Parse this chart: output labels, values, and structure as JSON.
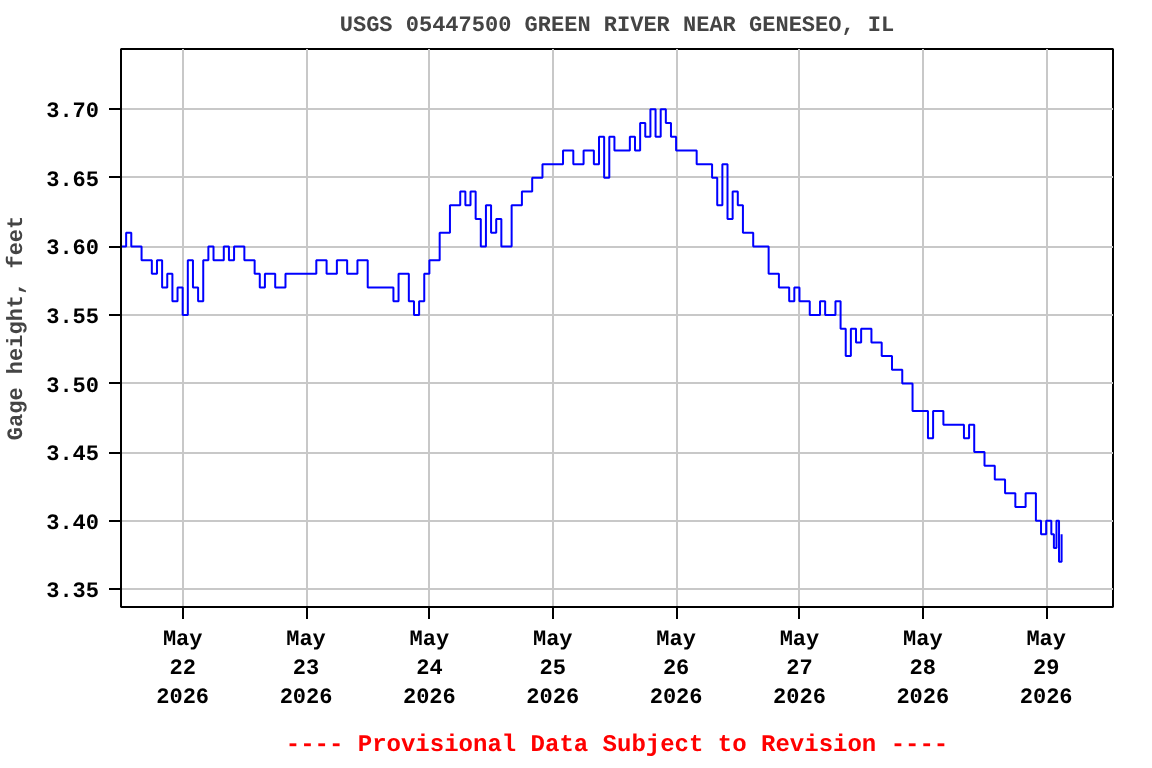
{
  "chart_data": {
    "type": "step",
    "title": "USGS 05447500 GREEN RIVER NEAR GENESEO, IL",
    "ylabel": "Gage height, feet",
    "annotations": [
      "---- Provisional Data Subject to Revision ----"
    ],
    "x": [
      "2026-05-21T12:00",
      "2026-05-21T13:00",
      "2026-05-21T14:00",
      "2026-05-21T16:00",
      "2026-05-21T18:00",
      "2026-05-21T19:00",
      "2026-05-21T20:00",
      "2026-05-21T21:00",
      "2026-05-21T22:00",
      "2026-05-21T23:00",
      "2026-05-22T00:00",
      "2026-05-22T01:00",
      "2026-05-22T02:00",
      "2026-05-22T03:00",
      "2026-05-22T04:00",
      "2026-05-22T05:00",
      "2026-05-22T06:00",
      "2026-05-22T08:00",
      "2026-05-22T09:00",
      "2026-05-22T10:00",
      "2026-05-22T12:00",
      "2026-05-22T14:00",
      "2026-05-22T15:00",
      "2026-05-22T16:00",
      "2026-05-22T18:00",
      "2026-05-22T20:00",
      "2026-05-23T00:00",
      "2026-05-23T02:00",
      "2026-05-23T04:00",
      "2026-05-23T06:00",
      "2026-05-23T08:00",
      "2026-05-23T10:00",
      "2026-05-23T12:00",
      "2026-05-23T14:00",
      "2026-05-23T16:00",
      "2026-05-23T17:00",
      "2026-05-23T18:00",
      "2026-05-23T20:00",
      "2026-05-23T21:00",
      "2026-05-23T22:00",
      "2026-05-23T23:00",
      "2026-05-24T00:00",
      "2026-05-24T02:00",
      "2026-05-24T04:00",
      "2026-05-24T06:00",
      "2026-05-24T07:00",
      "2026-05-24T08:00",
      "2026-05-24T09:00",
      "2026-05-24T10:00",
      "2026-05-24T11:00",
      "2026-05-24T12:00",
      "2026-05-24T13:00",
      "2026-05-24T14:00",
      "2026-05-24T16:00",
      "2026-05-24T18:00",
      "2026-05-24T20:00",
      "2026-05-24T22:00",
      "2026-05-25T00:00",
      "2026-05-25T02:00",
      "2026-05-25T04:00",
      "2026-05-25T06:00",
      "2026-05-25T08:00",
      "2026-05-25T09:00",
      "2026-05-25T10:00",
      "2026-05-25T11:00",
      "2026-05-25T12:00",
      "2026-05-25T14:00",
      "2026-05-25T15:00",
      "2026-05-25T16:00",
      "2026-05-25T17:00",
      "2026-05-25T18:00",
      "2026-05-25T19:00",
      "2026-05-25T20:00",
      "2026-05-25T21:00",
      "2026-05-25T22:00",
      "2026-05-25T23:00",
      "2026-05-26T00:00",
      "2026-05-26T02:00",
      "2026-05-26T04:00",
      "2026-05-26T06:00",
      "2026-05-26T07:00",
      "2026-05-26T08:00",
      "2026-05-26T09:00",
      "2026-05-26T10:00",
      "2026-05-26T11:00",
      "2026-05-26T12:00",
      "2026-05-26T13:00",
      "2026-05-26T15:00",
      "2026-05-26T18:00",
      "2026-05-26T20:00",
      "2026-05-26T22:00",
      "2026-05-26T23:00",
      "2026-05-27T00:00",
      "2026-05-27T02:00",
      "2026-05-27T04:00",
      "2026-05-27T05:00",
      "2026-05-27T07:00",
      "2026-05-27T08:00",
      "2026-05-27T09:00",
      "2026-05-27T10:00",
      "2026-05-27T11:00",
      "2026-05-27T12:00",
      "2026-05-27T14:00",
      "2026-05-27T16:00",
      "2026-05-27T18:00",
      "2026-05-27T20:00",
      "2026-05-27T22:00",
      "2026-05-28T00:00",
      "2026-05-28T01:00",
      "2026-05-28T02:00",
      "2026-05-28T04:00",
      "2026-05-28T06:00",
      "2026-05-28T08:00",
      "2026-05-28T09:00",
      "2026-05-28T10:00",
      "2026-05-28T12:00",
      "2026-05-28T14:00",
      "2026-05-28T16:00",
      "2026-05-28T18:00",
      "2026-05-28T20:00",
      "2026-05-28T22:00",
      "2026-05-28T23:00",
      "2026-05-29T00:00",
      "2026-05-29T01:00",
      "2026-05-29T01:30",
      "2026-05-29T02:00",
      "2026-05-29T02:30",
      "2026-05-29T03:00"
    ],
    "series": [
      {
        "color": "#0000ff",
        "values": [
          3.6,
          3.61,
          3.6,
          3.59,
          3.58,
          3.59,
          3.57,
          3.58,
          3.56,
          3.57,
          3.55,
          3.59,
          3.57,
          3.56,
          3.59,
          3.6,
          3.59,
          3.6,
          3.59,
          3.6,
          3.59,
          3.58,
          3.57,
          3.58,
          3.57,
          3.58,
          3.58,
          3.59,
          3.58,
          3.59,
          3.58,
          3.59,
          3.57,
          3.57,
          3.57,
          3.56,
          3.58,
          3.56,
          3.55,
          3.56,
          3.58,
          3.59,
          3.61,
          3.63,
          3.64,
          3.63,
          3.64,
          3.62,
          3.6,
          3.63,
          3.61,
          3.62,
          3.6,
          3.63,
          3.64,
          3.65,
          3.66,
          3.66,
          3.67,
          3.66,
          3.67,
          3.66,
          3.68,
          3.65,
          3.68,
          3.67,
          3.67,
          3.68,
          3.67,
          3.69,
          3.68,
          3.7,
          3.68,
          3.7,
          3.69,
          3.68,
          3.67,
          3.67,
          3.66,
          3.66,
          3.65,
          3.63,
          3.66,
          3.62,
          3.64,
          3.63,
          3.61,
          3.6,
          3.58,
          3.57,
          3.56,
          3.57,
          3.56,
          3.55,
          3.56,
          3.55,
          3.56,
          3.54,
          3.52,
          3.54,
          3.53,
          3.54,
          3.53,
          3.52,
          3.51,
          3.5,
          3.48,
          3.48,
          3.46,
          3.48,
          3.47,
          3.47,
          3.46,
          3.47,
          3.45,
          3.44,
          3.43,
          3.42,
          3.41,
          3.42,
          3.4,
          3.39,
          3.4,
          3.39,
          3.38,
          3.4,
          3.37,
          3.39
        ]
      }
    ],
    "xlim": [
      "2026-05-21T12:00",
      "2026-05-29T13:00"
    ],
    "xticks": [
      {
        "value": "2026-05-22",
        "label": "May\n22\n2026"
      },
      {
        "value": "2026-05-23",
        "label": "May\n23\n2026"
      },
      {
        "value": "2026-05-24",
        "label": "May\n24\n2026"
      },
      {
        "value": "2026-05-25",
        "label": "May\n25\n2026"
      },
      {
        "value": "2026-05-26",
        "label": "May\n26\n2026"
      },
      {
        "value": "2026-05-27",
        "label": "May\n27\n2026"
      },
      {
        "value": "2026-05-28",
        "label": "May\n28\n2026"
      },
      {
        "value": "2026-05-29",
        "label": "May\n29\n2026"
      }
    ],
    "ylim": [
      3.337,
      3.744
    ],
    "yticks": [
      {
        "value": 3.35,
        "label": "3.35"
      },
      {
        "value": 3.4,
        "label": "3.40"
      },
      {
        "value": 3.45,
        "label": "3.45"
      },
      {
        "value": 3.5,
        "label": "3.50"
      },
      {
        "value": 3.55,
        "label": "3.55"
      },
      {
        "value": 3.6,
        "label": "3.60"
      },
      {
        "value": 3.65,
        "label": "3.65"
      },
      {
        "value": 3.7,
        "label": "3.70"
      }
    ],
    "grid": true
  }
}
